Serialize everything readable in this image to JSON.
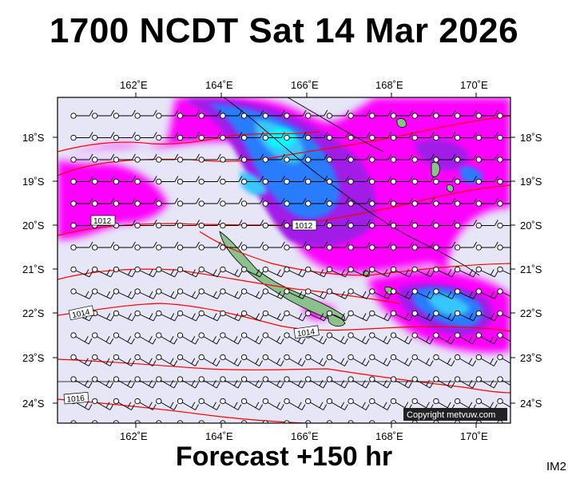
{
  "header": {
    "title": "1700 NCDT Sat 14 Mar 2026"
  },
  "footer": {
    "forecast": "Forecast +150 hr",
    "tag": "IM2"
  },
  "map": {
    "lon_range": [
      160.0,
      171.0
    ],
    "lat_range": [
      -24.4,
      -17.1
    ],
    "lon_ticks": [
      {
        "lon": 162,
        "label": "162˚E"
      },
      {
        "lon": 164,
        "label": "164˚E"
      },
      {
        "lon": 166,
        "label": "166˚E"
      },
      {
        "lon": 168,
        "label": "168˚E"
      },
      {
        "lon": 170,
        "label": "170˚E"
      }
    ],
    "lat_ticks": [
      {
        "lat": -18,
        "label": "18˚S"
      },
      {
        "lat": -19,
        "label": "19˚S"
      },
      {
        "lat": -20,
        "label": "20˚S"
      },
      {
        "lat": -21,
        "label": "21˚S"
      },
      {
        "lat": -22,
        "label": "22˚S"
      },
      {
        "lat": -23,
        "label": "23˚S"
      },
      {
        "lat": -24,
        "label": "24˚S"
      }
    ],
    "isobar_labels": [
      "1012",
      "1012",
      "1014",
      "1014",
      "1016"
    ],
    "copyright": "Copyright metvuw.com",
    "colors": {
      "background": "#e6e6f7",
      "magenta": "#ff00ff",
      "purple": "#a21ee8",
      "violet": "#7a45f0",
      "blue": "#2a7bff",
      "lightblue": "#39c6ff",
      "cyan": "#00ffff",
      "isobar": "#ff0000",
      "land": "#8cc08c"
    }
  }
}
